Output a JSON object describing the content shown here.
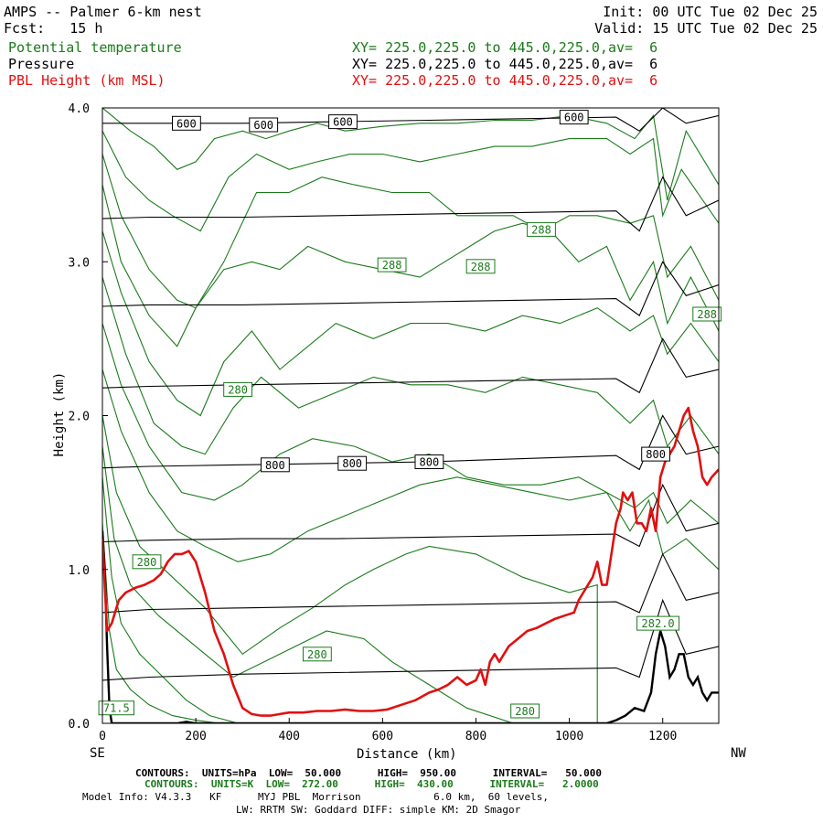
{
  "header": {
    "title": "AMPS -- Palmer 6-km nest",
    "forecast": "Fcst:   15 h",
    "init": "Init: 00 UTC Tue 02 Dec 25",
    "valid": "Valid: 15 UTC Tue 02 Dec 25"
  },
  "fields": [
    {
      "name": "Potential temperature",
      "xy": "XY= 225.0,225.0 to 445.0,225.0,av=  6",
      "color": "#1a7a1a"
    },
    {
      "name": "Pressure",
      "xy": "XY= 225.0,225.0 to 445.0,225.0,av=  6",
      "color": "#000000"
    },
    {
      "name": "PBL Height (km MSL)",
      "xy": "XY= 225.0,225.0 to 445.0,225.0,av=  6",
      "color": "#e01010"
    }
  ],
  "footer": {
    "line1": "CONTOURS:  UNITS=hPa  LOW=  50.000      HIGH=  950.00      INTERVAL=   50.000",
    "line2": "CONTOURS:  UNITS=K  LOW=  272.00      HIGH=  430.00      INTERVAL=   2.0000",
    "line3": "Model Info: V4.3.3   KF      MYJ PBL  Morrison            6.0 km,  60 levels,",
    "line4": "LW: RRTM SW: Goddard DIFF: simple KM: 2D Smagor"
  },
  "chart_data": {
    "type": "line",
    "title": "AMPS -- Palmer 6-km nest",
    "xlabel": "Distance (km)",
    "ylabel": "Height (km)",
    "xlim": [
      0,
      1320
    ],
    "ylim": [
      0,
      4.0
    ],
    "xticks": [
      0,
      200,
      400,
      600,
      800,
      1000,
      1200
    ],
    "yticks": [
      0.0,
      1.0,
      2.0,
      3.0,
      4.0
    ],
    "ytick_labels": [
      "0.0",
      "1.0",
      "2.0",
      "3.0",
      "4.0"
    ],
    "left_end_label": "SE",
    "right_end_label": "NW",
    "pressure_levels_hPa": [
      {
        "level": 950,
        "x": [
          0,
          100,
          300,
          500,
          700,
          900,
          1100,
          1150,
          1200,
          1250,
          1320
        ],
        "y": [
          0.28,
          0.3,
          0.32,
          0.33,
          0.34,
          0.35,
          0.36,
          0.3,
          0.8,
          0.45,
          0.5
        ]
      },
      {
        "level": 900,
        "x": [
          0,
          100,
          300,
          500,
          700,
          900,
          1100,
          1150,
          1200,
          1250,
          1320
        ],
        "y": [
          0.72,
          0.74,
          0.75,
          0.76,
          0.77,
          0.78,
          0.79,
          0.72,
          1.1,
          0.8,
          0.85
        ]
      },
      {
        "level": 850,
        "x": [
          0,
          100,
          300,
          500,
          700,
          900,
          1100,
          1150,
          1200,
          1250,
          1320
        ],
        "y": [
          1.18,
          1.19,
          1.2,
          1.2,
          1.21,
          1.22,
          1.23,
          1.15,
          1.55,
          1.25,
          1.3
        ]
      },
      {
        "level": 800,
        "x": [
          0,
          100,
          300,
          500,
          700,
          900,
          1100,
          1150,
          1200,
          1250,
          1320
        ],
        "y": [
          1.66,
          1.67,
          1.68,
          1.69,
          1.7,
          1.72,
          1.74,
          1.65,
          2.0,
          1.75,
          1.8
        ]
      },
      {
        "level": 750,
        "x": [
          0,
          100,
          300,
          500,
          700,
          900,
          1100,
          1150,
          1200,
          1250,
          1320
        ],
        "y": [
          2.18,
          2.19,
          2.2,
          2.21,
          2.22,
          2.23,
          2.24,
          2.15,
          2.5,
          2.25,
          2.3
        ]
      },
      {
        "level": 700,
        "x": [
          0,
          100,
          300,
          500,
          700,
          900,
          1100,
          1150,
          1200,
          1250,
          1320
        ],
        "y": [
          2.71,
          2.72,
          2.72,
          2.73,
          2.74,
          2.75,
          2.76,
          2.65,
          3.0,
          2.78,
          2.85
        ]
      },
      {
        "level": 650,
        "x": [
          0,
          100,
          300,
          500,
          700,
          900,
          1100,
          1150,
          1200,
          1250,
          1320
        ],
        "y": [
          3.28,
          3.29,
          3.29,
          3.3,
          3.31,
          3.32,
          3.33,
          3.2,
          3.55,
          3.3,
          3.4
        ]
      },
      {
        "level": 600,
        "x": [
          0,
          100,
          300,
          500,
          700,
          900,
          1100,
          1150,
          1200,
          1250,
          1320
        ],
        "y": [
          3.9,
          3.9,
          3.9,
          3.91,
          3.92,
          3.93,
          3.94,
          3.85,
          4.0,
          3.9,
          3.95
        ]
      }
    ],
    "pressure_labels": [
      {
        "text": "600",
        "x": 180,
        "y": 3.9
      },
      {
        "text": "600",
        "x": 515,
        "y": 3.91
      },
      {
        "text": "600",
        "x": 345,
        "y": 3.89
      },
      {
        "text": "600",
        "x": 1010,
        "y": 3.94
      },
      {
        "text": "800",
        "x": 370,
        "y": 1.68
      },
      {
        "text": "800",
        "x": 535,
        "y": 1.69
      },
      {
        "text": "800",
        "x": 700,
        "y": 1.7
      },
      {
        "text": "800",
        "x": 1185,
        "y": 1.75
      }
    ],
    "theta_isolines_K": [
      {
        "x": [
          0,
          15,
          30,
          60,
          100,
          150,
          200,
          250
        ],
        "y": [
          1.3,
          0.6,
          0.35,
          0.22,
          0.12,
          0.05,
          0.02,
          0.0
        ]
      },
      {
        "x": [
          0,
          20,
          40,
          80,
          130,
          180,
          230,
          290
        ],
        "y": [
          1.6,
          0.95,
          0.65,
          0.45,
          0.3,
          0.15,
          0.05,
          0.0
        ]
      },
      {
        "x": [
          0,
          25,
          60,
          120,
          200,
          280,
          380,
          480,
          560,
          620,
          700,
          780,
          880
        ],
        "y": [
          1.8,
          1.2,
          0.9,
          0.7,
          0.5,
          0.3,
          0.45,
          0.6,
          0.55,
          0.4,
          0.25,
          0.1,
          0.0
        ]
      },
      {
        "x": [
          0,
          30,
          80,
          150,
          220,
          300,
          380,
          450,
          520,
          580,
          650,
          700,
          800,
          900,
          1000,
          1060,
          1060
        ],
        "y": [
          2.0,
          1.5,
          1.15,
          0.95,
          0.75,
          0.45,
          0.62,
          0.75,
          0.9,
          1.0,
          1.1,
          1.15,
          1.1,
          0.95,
          0.85,
          0.9,
          0.0
        ]
      },
      {
        "x": [
          0,
          40,
          100,
          160,
          220,
          290,
          360,
          440,
          520,
          600,
          680,
          760,
          840,
          920,
          1000,
          1080,
          1130,
          1170,
          1200,
          1250,
          1320
        ],
        "y": [
          2.3,
          1.9,
          1.5,
          1.25,
          1.15,
          1.05,
          1.1,
          1.25,
          1.35,
          1.45,
          1.55,
          1.6,
          1.55,
          1.5,
          1.45,
          1.5,
          1.25,
          1.45,
          1.1,
          1.2,
          1.0
        ]
      },
      {
        "x": [
          0,
          40,
          100,
          170,
          240,
          300,
          380,
          450,
          540,
          620,
          700,
          780,
          860,
          940,
          1020,
          1080,
          1140,
          1180,
          1210,
          1260,
          1320
        ],
        "y": [
          2.6,
          2.2,
          1.8,
          1.5,
          1.45,
          1.55,
          1.75,
          1.85,
          1.8,
          1.7,
          1.75,
          1.6,
          1.55,
          1.55,
          1.6,
          1.5,
          1.4,
          1.5,
          1.3,
          1.45,
          1.3
        ]
      },
      {
        "x": [
          0,
          50,
          110,
          170,
          220,
          280,
          340,
          420,
          500,
          580,
          660,
          740,
          820,
          900,
          980,
          1060,
          1130,
          1180,
          1210,
          1260,
          1320
        ],
        "y": [
          2.9,
          2.4,
          1.95,
          1.8,
          1.75,
          2.05,
          2.25,
          2.05,
          2.15,
          2.25,
          2.2,
          2.2,
          2.15,
          2.25,
          2.2,
          2.15,
          1.95,
          2.1,
          1.8,
          2.0,
          1.75
        ]
      },
      {
        "x": [
          0,
          40,
          100,
          160,
          210,
          260,
          320,
          380,
          440,
          500,
          580,
          660,
          740,
          820,
          900,
          980,
          1060,
          1130,
          1180,
          1210,
          1260,
          1320
        ],
        "y": [
          3.2,
          2.8,
          2.35,
          2.1,
          2.0,
          2.35,
          2.55,
          2.3,
          2.45,
          2.6,
          2.5,
          2.6,
          2.6,
          2.55,
          2.65,
          2.6,
          2.7,
          2.55,
          2.65,
          2.4,
          2.6,
          2.35
        ]
      },
      {
        "x": [
          0,
          40,
          100,
          160,
          200,
          260,
          320,
          380,
          440,
          520,
          600,
          680,
          760,
          840,
          900,
          960,
          1020,
          1080,
          1130,
          1180,
          1210,
          1260,
          1320
        ],
        "y": [
          3.5,
          3.0,
          2.65,
          2.45,
          2.7,
          2.95,
          3.0,
          2.95,
          3.1,
          3.0,
          2.95,
          2.9,
          3.05,
          3.2,
          3.25,
          3.2,
          3.0,
          3.1,
          2.75,
          3.0,
          2.6,
          2.9,
          2.55
        ]
      },
      {
        "x": [
          0,
          40,
          100,
          160,
          200,
          260,
          330,
          400,
          470,
          540,
          620,
          700,
          760,
          820,
          880,
          940,
          1000,
          1060,
          1130,
          1180,
          1210,
          1260,
          1320
        ],
        "y": [
          3.7,
          3.3,
          2.95,
          2.75,
          2.7,
          3.0,
          3.45,
          3.45,
          3.55,
          3.5,
          3.45,
          3.45,
          3.3,
          3.3,
          3.3,
          3.2,
          3.3,
          3.3,
          3.25,
          3.3,
          2.9,
          3.1,
          2.75
        ]
      },
      {
        "x": [
          0,
          50,
          100,
          150,
          210,
          270,
          330,
          400,
          460,
          530,
          600,
          680,
          760,
          840,
          920,
          1000,
          1080,
          1130,
          1180,
          1200,
          1240,
          1320
        ],
        "y": [
          3.85,
          3.55,
          3.4,
          3.3,
          3.2,
          3.55,
          3.7,
          3.6,
          3.65,
          3.7,
          3.7,
          3.65,
          3.7,
          3.75,
          3.75,
          3.8,
          3.8,
          3.7,
          3.8,
          3.3,
          3.6,
          3.25
        ]
      },
      {
        "x": [
          0,
          60,
          110,
          160,
          200,
          240,
          300,
          350,
          400,
          460,
          520,
          600,
          680,
          760,
          840,
          920,
          1000,
          1080,
          1140,
          1180,
          1210,
          1250,
          1320
        ],
        "y": [
          4.0,
          3.85,
          3.75,
          3.6,
          3.65,
          3.8,
          3.85,
          3.8,
          3.85,
          3.9,
          3.85,
          3.88,
          3.9,
          3.9,
          3.92,
          3.92,
          3.95,
          3.9,
          3.8,
          3.95,
          3.4,
          3.85,
          3.5
        ]
      }
    ],
    "theta_labels": [
      {
        "text": "288",
        "x": 620,
        "y": 2.98
      },
      {
        "text": "288",
        "x": 810,
        "y": 2.97
      },
      {
        "text": "288",
        "x": 940,
        "y": 3.21
      },
      {
        "text": "288",
        "x": 1295,
        "y": 2.66
      },
      {
        "text": "280",
        "x": 290,
        "y": 2.17
      },
      {
        "text": "280",
        "x": 95,
        "y": 1.05
      },
      {
        "text": "280",
        "x": 460,
        "y": 0.45
      },
      {
        "text": "280",
        "x": 905,
        "y": 0.08
      },
      {
        "text": "71.5",
        "x": 30,
        "y": 0.1
      },
      {
        "text": "282.0",
        "x": 1190,
        "y": 0.65
      }
    ],
    "series": [
      {
        "name": "PBL Height (km MSL)",
        "x": [
          0,
          10,
          20,
          35,
          50,
          70,
          90,
          110,
          125,
          140,
          155,
          170,
          185,
          200,
          220,
          240,
          260,
          280,
          300,
          320,
          340,
          360,
          380,
          400,
          430,
          460,
          490,
          520,
          550,
          580,
          610,
          640,
          670,
          700,
          720,
          740,
          760,
          780,
          800,
          810,
          820,
          830,
          840,
          850,
          860,
          870,
          890,
          910,
          930,
          950,
          970,
          990,
          1010,
          1020,
          1030,
          1040,
          1050,
          1060,
          1070,
          1080,
          1090,
          1100,
          1110,
          1115,
          1125,
          1135,
          1145,
          1155,
          1165,
          1175,
          1185,
          1195,
          1205,
          1215,
          1225,
          1235,
          1245,
          1255,
          1265,
          1275,
          1285,
          1295,
          1305,
          1320
        ],
        "y": [
          1.2,
          0.6,
          0.65,
          0.8,
          0.85,
          0.88,
          0.9,
          0.93,
          0.97,
          1.05,
          1.1,
          1.1,
          1.12,
          1.05,
          0.85,
          0.6,
          0.45,
          0.25,
          0.1,
          0.06,
          0.05,
          0.05,
          0.06,
          0.07,
          0.07,
          0.08,
          0.08,
          0.09,
          0.08,
          0.08,
          0.09,
          0.12,
          0.15,
          0.2,
          0.22,
          0.25,
          0.3,
          0.25,
          0.28,
          0.35,
          0.25,
          0.4,
          0.45,
          0.4,
          0.45,
          0.5,
          0.55,
          0.6,
          0.62,
          0.65,
          0.68,
          0.7,
          0.72,
          0.8,
          0.85,
          0.9,
          0.95,
          1.05,
          0.9,
          0.9,
          1.1,
          1.3,
          1.4,
          1.5,
          1.45,
          1.5,
          1.3,
          1.3,
          1.25,
          1.4,
          1.25,
          1.6,
          1.7,
          1.75,
          1.8,
          1.9,
          2.0,
          2.05,
          1.9,
          1.8,
          1.6,
          1.55,
          1.6,
          1.65
        ],
        "color": "#e01010"
      }
    ],
    "terrain": {
      "name": "Terrain height",
      "x": [
        0,
        5,
        10,
        15,
        20,
        40,
        80,
        120,
        160,
        180,
        200,
        240,
        280,
        320,
        360,
        400,
        440,
        480,
        520,
        560,
        600,
        640,
        680,
        720,
        760,
        800,
        840,
        880,
        920,
        960,
        1000,
        1040,
        1080,
        1100,
        1120,
        1140,
        1160,
        1175,
        1185,
        1195,
        1205,
        1215,
        1225,
        1235,
        1245,
        1255,
        1265,
        1275,
        1285,
        1295,
        1305,
        1320
      ],
      "y": [
        1.25,
        1.0,
        0.5,
        0.1,
        0.0,
        0.0,
        0.0,
        0.0,
        0.0,
        0.01,
        0.0,
        0.0,
        0.0,
        0.0,
        0.0,
        0.0,
        0.0,
        0.0,
        0.0,
        0.0,
        0.0,
        0.0,
        0.0,
        0.0,
        0.0,
        0.0,
        0.0,
        0.0,
        0.0,
        0.0,
        0.0,
        0.0,
        0.0,
        0.02,
        0.05,
        0.1,
        0.08,
        0.2,
        0.45,
        0.6,
        0.5,
        0.3,
        0.35,
        0.45,
        0.45,
        0.3,
        0.25,
        0.3,
        0.2,
        0.15,
        0.2,
        0.2
      ]
    }
  }
}
